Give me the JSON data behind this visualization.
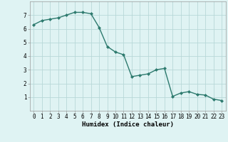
{
  "x": [
    0,
    1,
    2,
    3,
    4,
    5,
    6,
    7,
    8,
    9,
    10,
    11,
    12,
    13,
    14,
    15,
    16,
    17,
    18,
    19,
    20,
    21,
    22,
    23
  ],
  "y": [
    6.3,
    6.6,
    6.7,
    6.8,
    7.0,
    7.2,
    7.2,
    7.1,
    6.1,
    4.7,
    4.3,
    4.1,
    2.5,
    2.6,
    2.7,
    3.0,
    3.1,
    1.05,
    1.3,
    1.4,
    1.2,
    1.15,
    0.85,
    0.75
  ],
  "line_color": "#2d7a6e",
  "marker": "D",
  "marker_size": 2.0,
  "bg_color": "#dff3f3",
  "grid_color": "#b8d8d8",
  "xlabel": "Humidex (Indice chaleur)",
  "xlim": [
    -0.5,
    23.5
  ],
  "ylim": [
    0,
    8
  ],
  "yticks": [
    1,
    2,
    3,
    4,
    5,
    6,
    7
  ],
  "xticks": [
    0,
    1,
    2,
    3,
    4,
    5,
    6,
    7,
    8,
    9,
    10,
    11,
    12,
    13,
    14,
    15,
    16,
    17,
    18,
    19,
    20,
    21,
    22,
    23
  ],
  "xtick_labels": [
    "0",
    "1",
    "2",
    "3",
    "4",
    "5",
    "6",
    "7",
    "8",
    "9",
    "10",
    "11",
    "12",
    "13",
    "14",
    "15",
    "16",
    "17",
    "18",
    "19",
    "20",
    "21",
    "22",
    "23"
  ],
  "xlabel_fontsize": 6.5,
  "tick_fontsize": 5.5,
  "line_width": 1.0
}
